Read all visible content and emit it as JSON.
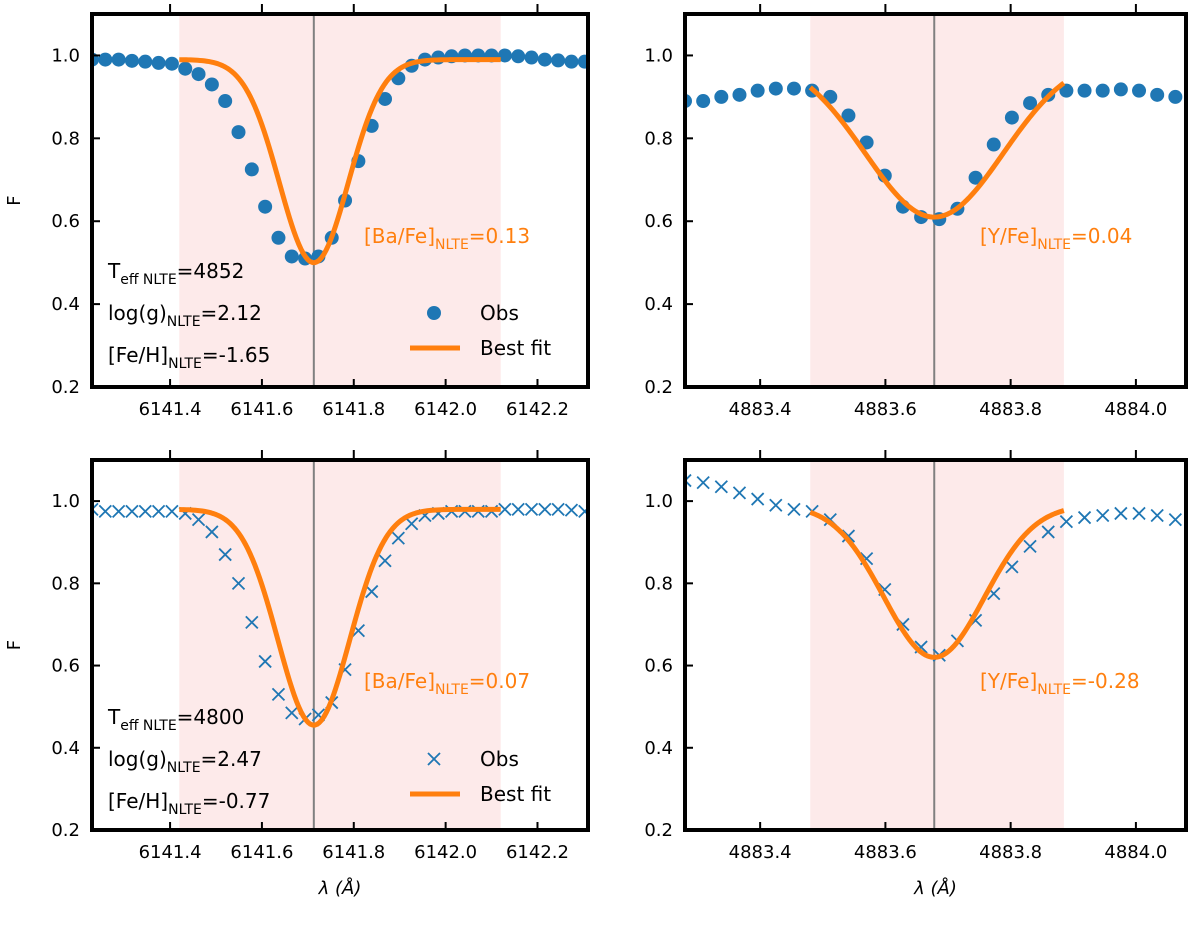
{
  "figure": {
    "ylabel": "F",
    "xlabel": "λ (Å)",
    "obs_color": "#1f77b4",
    "fit_color": "#ff7f0e",
    "band_color": "#fdeaea",
    "line_color": "#808080"
  },
  "chart_data": [
    {
      "type": "line",
      "panel": "top-left",
      "element": "Ba",
      "marker": "circle",
      "xlim": [
        6141.23,
        6142.31
      ],
      "ylim": [
        0.2,
        1.1
      ],
      "xticks": [
        6141.4,
        6141.6,
        6141.8,
        6142.0,
        6142.2
      ],
      "xtick_labels": [
        "6141.4",
        "6141.6",
        "6141.8",
        "6142.0",
        "6142.2"
      ],
      "yticks": [
        0.2,
        0.4,
        0.6,
        0.8,
        1.0
      ],
      "ytick_labels": [
        "0.2",
        "0.4",
        "0.6",
        "0.8",
        "1.0"
      ],
      "shade": [
        6141.42,
        6142.12
      ],
      "center": 6141.713,
      "fit": {
        "continuum": 0.99,
        "depth": 0.49,
        "sigma": 0.075,
        "x_range": [
          6141.42,
          6142.12
        ]
      },
      "series": [
        {
          "name": "Obs",
          "x": [
            6141.23,
            6141.259,
            6141.288,
            6141.317,
            6141.346,
            6141.375,
            6141.404,
            6141.433,
            6141.462,
            6141.491,
            6141.52,
            6141.549,
            6141.578,
            6141.607,
            6141.636,
            6141.665,
            6141.694,
            6141.723,
            6141.752,
            6141.781,
            6141.81,
            6141.839,
            6141.868,
            6141.897,
            6141.926,
            6141.955,
            6141.984,
            6142.013,
            6142.042,
            6142.071,
            6142.1,
            6142.129,
            6142.158,
            6142.187,
            6142.216,
            6142.245,
            6142.274,
            6142.303
          ],
          "values": [
            0.99,
            0.99,
            0.99,
            0.987,
            0.985,
            0.982,
            0.98,
            0.968,
            0.955,
            0.93,
            0.89,
            0.815,
            0.725,
            0.635,
            0.56,
            0.515,
            0.51,
            0.515,
            0.56,
            0.65,
            0.745,
            0.83,
            0.895,
            0.945,
            0.975,
            0.99,
            0.995,
            0.998,
            1.0,
            1.0,
            1.0,
            1.0,
            0.998,
            0.995,
            0.99,
            0.988,
            0.985,
            0.985
          ]
        },
        {
          "name": "Best fit"
        }
      ],
      "annotation": {
        "base": "[Ba/Fe]",
        "sub": "NLTE",
        "tail": "=0.13"
      },
      "params": [
        {
          "base": "T",
          "sub": "eff NLTE",
          "tail": "=4852"
        },
        {
          "base": "log(g)",
          "sub": "NLTE",
          "tail": "=2.12"
        },
        {
          "base": "[Fe/H]",
          "sub": "NLTE",
          "tail": "=-1.65"
        }
      ],
      "legend": {
        "position": "lower-right",
        "obs": "Obs",
        "fit": "Best fit"
      }
    },
    {
      "type": "line",
      "panel": "top-right",
      "element": "Y",
      "marker": "circle",
      "xlim": [
        4883.28,
        4884.08
      ],
      "ylim": [
        0.2,
        1.1
      ],
      "xticks": [
        4883.4,
        4883.6,
        4883.8,
        4884.0
      ],
      "xtick_labels": [
        "4883.4",
        "4883.6",
        "4883.8",
        "4884.0"
      ],
      "yticks": [
        0.2,
        0.4,
        0.6,
        0.8,
        1.0
      ],
      "ytick_labels": [
        "0.2",
        "0.4",
        "0.6",
        "0.8",
        "1.0"
      ],
      "shade": [
        4883.48,
        4883.885
      ],
      "center": 4883.678,
      "fit": {
        "continuum": 1.0,
        "depth": 0.39,
        "sigma": 0.11,
        "x_range": [
          4883.48,
          4883.885
        ]
      },
      "series": [
        {
          "name": "Obs",
          "x": [
            4883.28,
            4883.309,
            4883.338,
            4883.367,
            4883.396,
            4883.425,
            4883.454,
            4883.483,
            4883.512,
            4883.541,
            4883.57,
            4883.599,
            4883.628,
            4883.657,
            4883.686,
            4883.715,
            4883.744,
            4883.773,
            4883.802,
            4883.831,
            4883.86,
            4883.889,
            4883.918,
            4883.947,
            4883.976,
            4884.005,
            4884.034,
            4884.063
          ],
          "values": [
            0.89,
            0.89,
            0.9,
            0.905,
            0.915,
            0.92,
            0.92,
            0.915,
            0.9,
            0.855,
            0.79,
            0.71,
            0.635,
            0.61,
            0.605,
            0.63,
            0.705,
            0.785,
            0.85,
            0.885,
            0.905,
            0.915,
            0.915,
            0.915,
            0.918,
            0.915,
            0.905,
            0.9
          ]
        },
        {
          "name": "Best fit"
        }
      ],
      "annotation": {
        "base": "[Y/Fe]",
        "sub": "NLTE",
        "tail": "=0.04"
      }
    },
    {
      "type": "line",
      "panel": "bottom-left",
      "element": "Ba",
      "marker": "x",
      "xlim": [
        6141.23,
        6142.31
      ],
      "ylim": [
        0.2,
        1.1
      ],
      "xticks": [
        6141.4,
        6141.6,
        6141.8,
        6142.0,
        6142.2
      ],
      "xtick_labels": [
        "6141.4",
        "6141.6",
        "6141.8",
        "6142.0",
        "6142.2"
      ],
      "yticks": [
        0.2,
        0.4,
        0.6,
        0.8,
        1.0
      ],
      "ytick_labels": [
        "0.2",
        "0.4",
        "0.6",
        "0.8",
        "1.0"
      ],
      "shade": [
        6141.42,
        6142.12
      ],
      "center": 6141.713,
      "fit": {
        "continuum": 0.98,
        "depth": 0.525,
        "sigma": 0.078,
        "x_range": [
          6141.42,
          6142.12
        ]
      },
      "series": [
        {
          "name": "Obs",
          "x": [
            6141.23,
            6141.259,
            6141.288,
            6141.317,
            6141.346,
            6141.375,
            6141.404,
            6141.433,
            6141.462,
            6141.491,
            6141.52,
            6141.549,
            6141.578,
            6141.607,
            6141.636,
            6141.665,
            6141.694,
            6141.723,
            6141.752,
            6141.781,
            6141.81,
            6141.839,
            6141.868,
            6141.897,
            6141.926,
            6141.955,
            6141.984,
            6142.013,
            6142.042,
            6142.071,
            6142.1,
            6142.129,
            6142.158,
            6142.187,
            6142.216,
            6142.245,
            6142.274,
            6142.303
          ],
          "values": [
            0.98,
            0.975,
            0.975,
            0.975,
            0.975,
            0.975,
            0.975,
            0.97,
            0.955,
            0.925,
            0.87,
            0.8,
            0.705,
            0.61,
            0.53,
            0.485,
            0.47,
            0.48,
            0.51,
            0.59,
            0.685,
            0.78,
            0.855,
            0.91,
            0.945,
            0.965,
            0.97,
            0.975,
            0.975,
            0.975,
            0.975,
            0.98,
            0.98,
            0.98,
            0.98,
            0.98,
            0.978,
            0.975
          ]
        },
        {
          "name": "Best fit"
        }
      ],
      "annotation": {
        "base": "[Ba/Fe]",
        "sub": "NLTE",
        "tail": "=0.07"
      },
      "params": [
        {
          "base": "T",
          "sub": "eff NLTE",
          "tail": "=4800"
        },
        {
          "base": "log(g)",
          "sub": "NLTE",
          "tail": "=2.47"
        },
        {
          "base": "[Fe/H]",
          "sub": "NLTE",
          "tail": "=-0.77"
        }
      ],
      "legend": {
        "position": "lower-right",
        "obs": "Obs",
        "fit": "Best fit"
      }
    },
    {
      "type": "line",
      "panel": "bottom-right",
      "element": "Y",
      "marker": "x",
      "xlim": [
        4883.28,
        4884.08
      ],
      "ylim": [
        0.2,
        1.1
      ],
      "xticks": [
        4883.4,
        4883.6,
        4883.8,
        4884.0
      ],
      "xtick_labels": [
        "4883.4",
        "4883.6",
        "4883.8",
        "4884.0"
      ],
      "yticks": [
        0.2,
        0.4,
        0.6,
        0.8,
        1.0
      ],
      "ytick_labels": [
        "0.2",
        "0.4",
        "0.6",
        "0.8",
        "1.0"
      ],
      "shade": [
        4883.48,
        4883.885
      ],
      "center": 4883.678,
      "fit": {
        "continuum": 0.99,
        "depth": 0.37,
        "sigma": 0.08,
        "x_range": [
          4883.48,
          4883.885
        ]
      },
      "series": [
        {
          "name": "Obs",
          "x": [
            4883.28,
            4883.309,
            4883.338,
            4883.367,
            4883.396,
            4883.425,
            4883.454,
            4883.483,
            4883.512,
            4883.541,
            4883.57,
            4883.599,
            4883.628,
            4883.657,
            4883.686,
            4883.715,
            4883.744,
            4883.773,
            4883.802,
            4883.831,
            4883.86,
            4883.889,
            4883.918,
            4883.947,
            4883.976,
            4884.005,
            4884.034,
            4884.063
          ],
          "values": [
            1.05,
            1.045,
            1.035,
            1.02,
            1.005,
            0.99,
            0.98,
            0.975,
            0.955,
            0.915,
            0.86,
            0.785,
            0.7,
            0.645,
            0.625,
            0.66,
            0.71,
            0.775,
            0.84,
            0.89,
            0.925,
            0.95,
            0.96,
            0.965,
            0.97,
            0.97,
            0.965,
            0.955
          ]
        },
        {
          "name": "Best fit"
        }
      ],
      "annotation": {
        "base": "[Y/Fe]",
        "sub": "NLTE",
        "tail": "=-0.28"
      }
    }
  ]
}
